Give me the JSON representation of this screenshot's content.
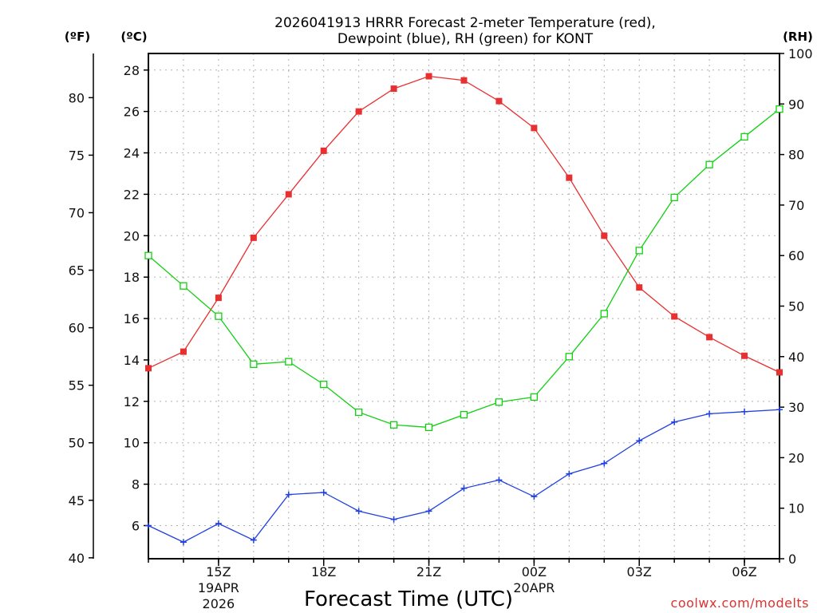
{
  "title_line1": "2026041913 HRRR Forecast 2-meter Temperature (red),",
  "title_line2": "Dewpoint (blue), RH (green) for KONT",
  "unit_f": "(ºF)",
  "unit_c": "(ºC)",
  "unit_rh": "(RH)",
  "credit": "coolwx.com/modelts",
  "colors": {
    "temperature": "#e83030",
    "dewpoint": "#2040e0",
    "rh": "#10d010",
    "grid": "#b0b0b0"
  },
  "chart_data": {
    "type": "line",
    "title": "2026041913 HRRR Forecast 2-meter Temperature (red), Dewpoint (blue), RH (green) for KONT",
    "xlabel": "Forecast Time (UTC)",
    "ylabel_left_c": "(ºC)",
    "ylabel_left_f": "(ºF)",
    "ylabel_right": "(RH)",
    "x": [
      "13Z",
      "14Z",
      "15Z",
      "16Z",
      "17Z",
      "18Z",
      "19Z",
      "20Z",
      "21Z",
      "22Z",
      "23Z",
      "00Z",
      "01Z",
      "02Z",
      "03Z",
      "04Z",
      "05Z",
      "06Z",
      "07Z"
    ],
    "x_ticks": [
      {
        "label": "15Z",
        "sub1": "19APR",
        "sub2": "2026",
        "index": 2
      },
      {
        "label": "18Z",
        "sub1": "",
        "sub2": "",
        "index": 5
      },
      {
        "label": "21Z",
        "sub1": "",
        "sub2": "",
        "index": 8
      },
      {
        "label": "00Z",
        "sub1": "20APR",
        "sub2": "",
        "index": 11
      },
      {
        "label": "03Z",
        "sub1": "",
        "sub2": "",
        "index": 14
      },
      {
        "label": "06Z",
        "sub1": "",
        "sub2": "",
        "index": 17
      }
    ],
    "ylim_c": [
      4.4,
      28.8
    ],
    "yticks_c": [
      6,
      8,
      10,
      12,
      14,
      16,
      18,
      20,
      22,
      24,
      26,
      28
    ],
    "yticks_f": [
      40,
      45,
      50,
      55,
      60,
      65,
      70,
      75,
      80
    ],
    "ylim_rh": [
      0,
      100
    ],
    "yticks_rh": [
      0,
      10,
      20,
      30,
      40,
      50,
      60,
      70,
      80,
      90,
      100
    ],
    "grid": true,
    "series": [
      {
        "name": "Temperature",
        "axis": "c",
        "marker": "square-filled",
        "color": "#e83030",
        "values": [
          13.6,
          14.4,
          17.0,
          19.9,
          22.0,
          24.1,
          26.0,
          27.1,
          27.7,
          27.5,
          26.5,
          25.2,
          22.8,
          20.0,
          17.5,
          16.1,
          15.1,
          14.2,
          13.4
        ]
      },
      {
        "name": "Dewpoint",
        "axis": "c",
        "marker": "plus",
        "color": "#2040e0",
        "values": [
          6.0,
          5.2,
          6.1,
          5.3,
          7.5,
          7.6,
          6.7,
          6.3,
          6.7,
          7.8,
          8.2,
          7.4,
          8.5,
          9.0,
          10.1,
          11.0,
          11.4,
          11.5,
          11.6
        ]
      },
      {
        "name": "RH",
        "axis": "rh",
        "marker": "square-open",
        "color": "#10d010",
        "values": [
          60,
          54,
          48,
          38.5,
          39,
          34.5,
          29,
          26.5,
          26,
          28.5,
          31,
          32,
          40,
          48.5,
          61,
          71.5,
          78,
          83.5,
          89
        ]
      }
    ]
  }
}
